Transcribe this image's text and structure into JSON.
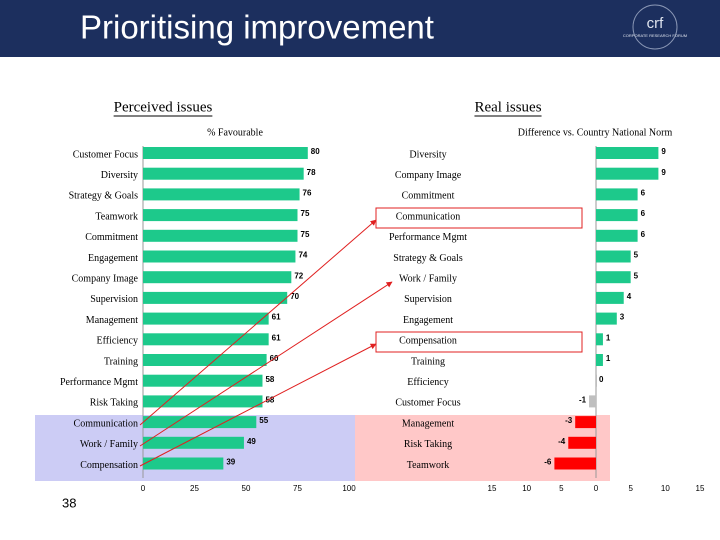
{
  "header": {
    "title": "Prioritising improvement",
    "logo": "crf",
    "logo_subtitle": "CORPORATE RESEARCH FORUM"
  },
  "page_number": "38",
  "chart_data": [
    {
      "type": "hbar",
      "title": "Perceived issues",
      "axis_label": "% Favourable",
      "categories": [
        "Customer Focus",
        "Diversity",
        "Strategy & Goals",
        "Teamwork",
        "Commitment",
        "Engagement",
        "Company Image",
        "Supervision",
        "Management",
        "Efficiency",
        "Training",
        "Performance Mgmt",
        "Risk Taking",
        "Communication",
        "Work / Family",
        "Compensation"
      ],
      "values": [
        80,
        78,
        76,
        75,
        75,
        74,
        72,
        70,
        61,
        61,
        60,
        58,
        58,
        55,
        49,
        39
      ],
      "color": "#1dc98b",
      "xlim": [
        0,
        100
      ],
      "xticks": [
        0,
        25,
        50,
        75,
        100
      ],
      "grid": false
    },
    {
      "type": "hbar",
      "title": "Real issues",
      "axis_label": "Difference vs. Country National Norm",
      "categories": [
        "Diversity",
        "Company Image",
        "Commitment",
        "Communication",
        "Performance Mgmt",
        "Strategy & Goals",
        "Work / Family",
        "Supervision",
        "Engagement",
        "Compensation",
        "Training",
        "Efficiency",
        "Customer Focus",
        "Management",
        "Risk Taking",
        "Teamwork"
      ],
      "values": [
        9,
        9,
        6,
        6,
        6,
        5,
        5,
        4,
        3,
        1,
        1,
        0,
        -1,
        -3,
        -4,
        -6
      ],
      "colors": [
        "#1dc98b",
        "#1dc98b",
        "#1dc98b",
        "#1dc98b",
        "#1dc98b",
        "#1dc98b",
        "#1dc98b",
        "#1dc98b",
        "#1dc98b",
        "#1dc98b",
        "#1dc98b",
        "#bfbfbf",
        "#bfbfbf",
        "#ff0000",
        "#ff0000",
        "#ff0000"
      ],
      "xlim": [
        -15,
        15
      ],
      "xticks": [
        {
          "value": -15,
          "label": "15"
        },
        {
          "value": -10,
          "label": "10"
        },
        {
          "value": -5,
          "label": "5"
        },
        0,
        5,
        10,
        15
      ],
      "grid": false
    }
  ]
}
